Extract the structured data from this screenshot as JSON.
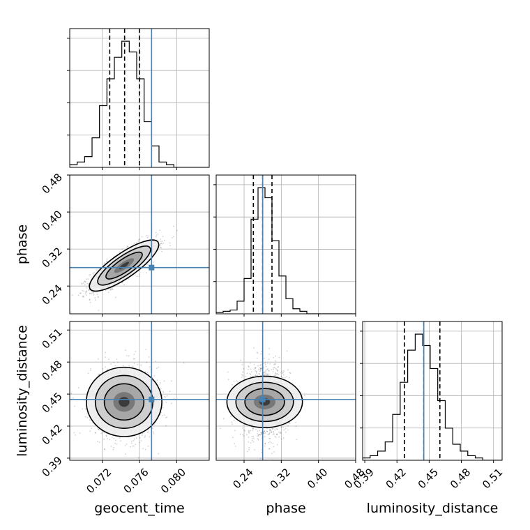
{
  "chart_data": {
    "type": "corner",
    "parameters": [
      "geocent_time",
      "phase",
      "luminosity_distance"
    ],
    "axes_labels": {
      "x": [
        "geocent_time",
        "phase",
        "luminosity_distance"
      ],
      "y": [
        "",
        "phase",
        "luminosity_distance"
      ]
    },
    "ranges": {
      "geocent_time": [
        0.0685,
        0.0835
      ],
      "phase": [
        0.18,
        0.48
      ],
      "luminosity_distance": [
        0.388,
        0.518
      ]
    },
    "ticks": {
      "geocent_time": [
        "0.072",
        "0.076",
        "0.080"
      ],
      "phase": [
        "0.24",
        "0.32",
        "0.40",
        "0.48"
      ],
      "luminosity_distance": [
        "0.39",
        "0.42",
        "0.45",
        "0.48",
        "0.51"
      ]
    },
    "tick_values": {
      "geocent_time": [
        0.072,
        0.076,
        0.08
      ],
      "phase": [
        0.24,
        0.32,
        0.4,
        0.48
      ],
      "luminosity_distance": [
        0.39,
        0.42,
        0.45,
        0.48,
        0.51
      ]
    },
    "truths": {
      "geocent_time": 0.0773,
      "phase": 0.28,
      "luminosity_distance": 0.445
    },
    "truth_color": "#4682b4",
    "quantiles": {
      "geocent_time": [
        0.0728,
        0.0744,
        0.076
      ],
      "phase": [
        0.26,
        0.28,
        0.3
      ],
      "luminosity_distance": [
        0.427,
        0.445,
        0.46
      ]
    },
    "histograms": {
      "geocent_time": {
        "edges": [
          0.0685,
          0.0693,
          0.0701,
          0.0709,
          0.0717,
          0.0725,
          0.0733,
          0.0741,
          0.0749,
          0.0757,
          0.0765,
          0.0773,
          0.0781,
          0.0789,
          0.0797,
          0.0805,
          0.0813,
          0.0821,
          0.0829,
          0.0835
        ],
        "counts": [
          1,
          2,
          4,
          11,
          23,
          33,
          41,
          47,
          43,
          33,
          17,
          8,
          2,
          1,
          0,
          0,
          0,
          0,
          0
        ]
      },
      "phase": {
        "edges": [
          0.18,
          0.195,
          0.21,
          0.225,
          0.24,
          0.255,
          0.27,
          0.285,
          0.3,
          0.315,
          0.33,
          0.345,
          0.36,
          0.375,
          0.39,
          0.405,
          0.42,
          0.435,
          0.45,
          0.465,
          0.48
        ],
        "counts": [
          1,
          2,
          3,
          10,
          28,
          75,
          100,
          92,
          58,
          30,
          12,
          4,
          2,
          0,
          0,
          0,
          0,
          0,
          0,
          0
        ]
      },
      "luminosity_distance": {
        "edges": [
          0.388,
          0.395,
          0.402,
          0.409,
          0.416,
          0.423,
          0.43,
          0.437,
          0.444,
          0.451,
          0.458,
          0.465,
          0.472,
          0.479,
          0.486,
          0.493,
          0.5,
          0.507,
          0.514,
          0.518
        ],
        "counts": [
          1,
          2,
          4,
          8,
          20,
          34,
          48,
          55,
          50,
          40,
          26,
          14,
          7,
          4,
          2,
          1,
          0,
          0,
          0
        ]
      }
    },
    "correlations": {
      "phase_vs_geocent_time": 0.82,
      "luminosity_distance_vs_geocent_time": 0.0,
      "luminosity_distance_vs_phase": 0.0
    },
    "grid": true
  }
}
